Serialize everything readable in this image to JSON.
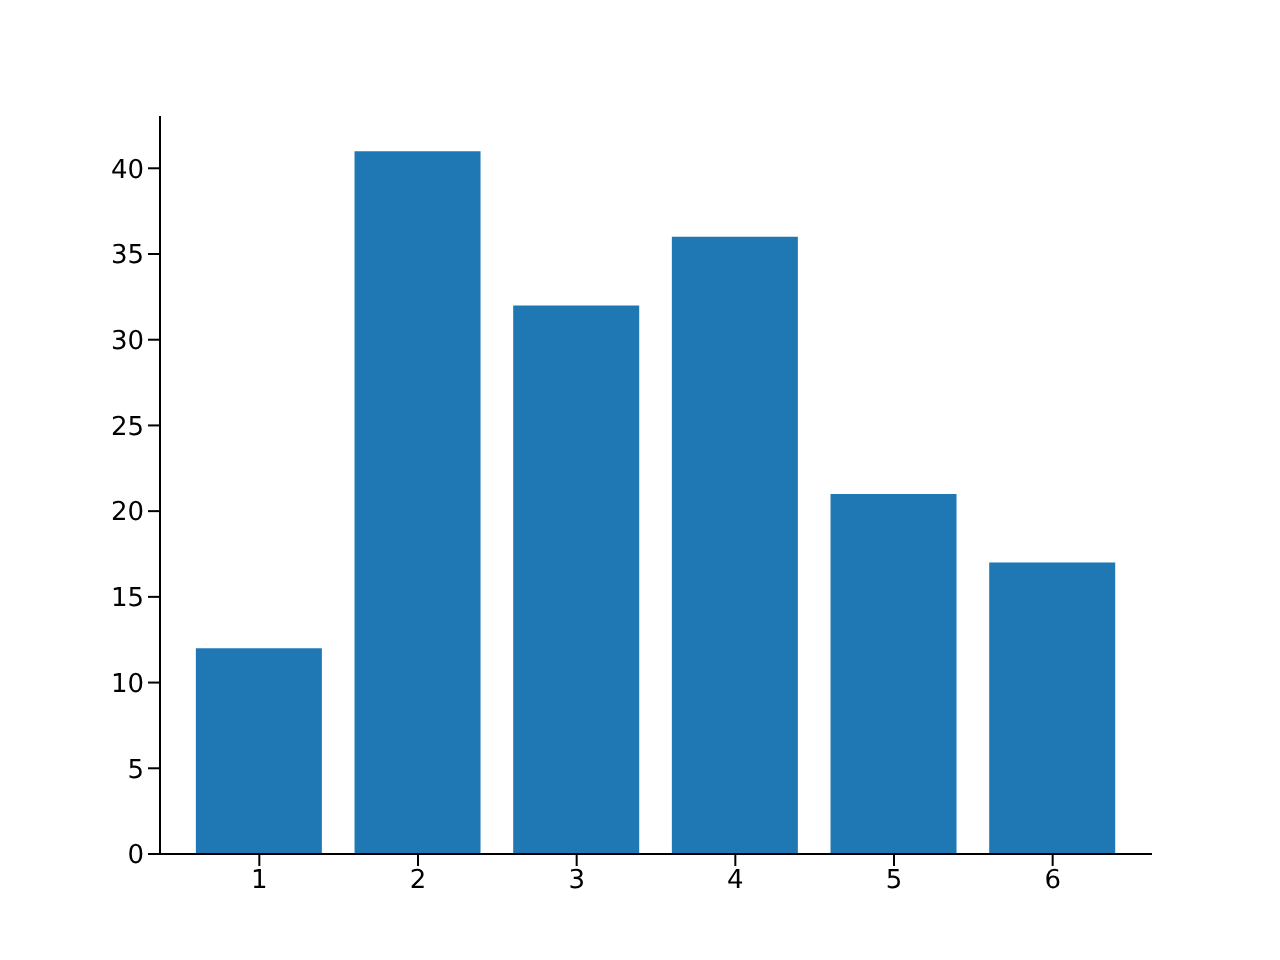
{
  "chart_data": {
    "type": "bar",
    "categories": [
      "1",
      "2",
      "3",
      "4",
      "5",
      "6"
    ],
    "values": [
      12,
      41,
      32,
      36,
      21,
      17
    ],
    "color": "#1f77b4",
    "ylim": [
      0,
      43.05
    ],
    "yticks": [
      0,
      5,
      10,
      15,
      20,
      25,
      30,
      35,
      40
    ]
  }
}
